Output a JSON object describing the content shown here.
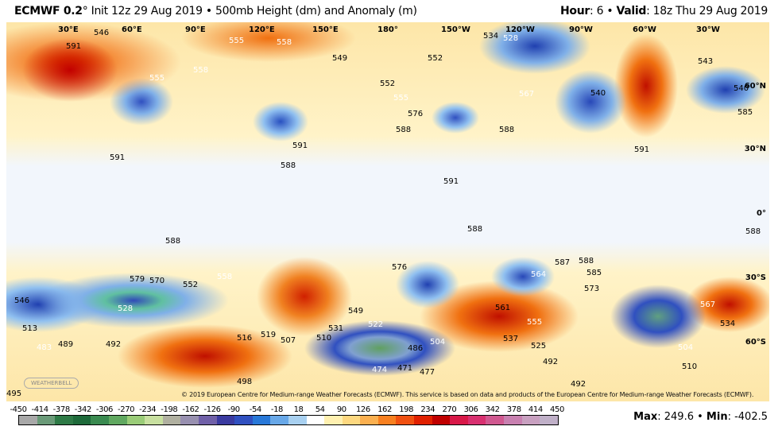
{
  "header": {
    "model": "ECMWF 0.2",
    "title_rest": "° Init 12z 29 Aug 2019 • 500mb Height (dm) and Anomaly (m)",
    "hour_label": "Hour",
    "hour_value": ": 6 • ",
    "valid_label": "Valid",
    "valid_value": ": 18z Thu 29 Aug 2019"
  },
  "map": {
    "longitudes": [
      "30°E",
      "60°E",
      "90°E",
      "120°E",
      "150°E",
      "180°",
      "150°W",
      "120°W",
      "90°W",
      "60°W",
      "30°W"
    ],
    "latitudes": [
      "60°N",
      "30°N",
      "0°",
      "30°S",
      "60°S"
    ],
    "contour_labels": [
      "546",
      "591",
      "555",
      "558",
      "555",
      "558",
      "549",
      "552",
      "552",
      "555",
      "576",
      "588",
      "591",
      "588",
      "591",
      "534",
      "528",
      "540",
      "567",
      "588",
      "591",
      "543",
      "540",
      "585",
      "591",
      "588",
      "588",
      "588",
      "579",
      "570",
      "552",
      "558",
      "546",
      "528",
      "513",
      "489",
      "483",
      "492",
      "516",
      "519",
      "507",
      "510",
      "531",
      "549",
      "522",
      "576",
      "486",
      "471",
      "474",
      "477",
      "504",
      "564",
      "587",
      "588",
      "573",
      "561",
      "555",
      "537",
      "525",
      "492",
      "492",
      "510",
      "567",
      "534",
      "504",
      "498",
      "495",
      "585"
    ],
    "copyright": "© 2019 European Centre for Medium-range Weather Forecasts (ECMWF). This service is based on data and products of the European Centre for Medium-range Weather Forecasts (ECMWF).",
    "logo": "WEATHERBELL"
  },
  "colorbar": {
    "ticks": [
      "-450",
      "-414",
      "-378",
      "-342",
      "-306",
      "-270",
      "-234",
      "-198",
      "-162",
      "-126",
      "-90",
      "-54",
      "-18",
      "18",
      "54",
      "90",
      "126",
      "162",
      "198",
      "234",
      "270",
      "306",
      "342",
      "378",
      "414",
      "450"
    ],
    "colors": [
      "#a8a8a8",
      "#6a9a78",
      "#2e7a46",
      "#1e6a3a",
      "#3a8a50",
      "#60a860",
      "#9acc78",
      "#c8e0a0",
      "#b0b0a0",
      "#9890b0",
      "#7060a8",
      "#3a3aa0",
      "#3050c0",
      "#2878d8",
      "#68a8e8",
      "#a8d0f0",
      "#ffffff",
      "#fff0b0",
      "#fdd880",
      "#fbb050",
      "#f88020",
      "#f05010",
      "#e02000",
      "#c00000",
      "#d81848",
      "#d83070",
      "#d05890",
      "#c880b0",
      "#c8a0c0",
      "#c0b0c8"
    ]
  },
  "stats": {
    "max_label": "Max",
    "max_value": ": 249.6 • ",
    "min_label": "Min",
    "min_value": ": -402.5"
  }
}
